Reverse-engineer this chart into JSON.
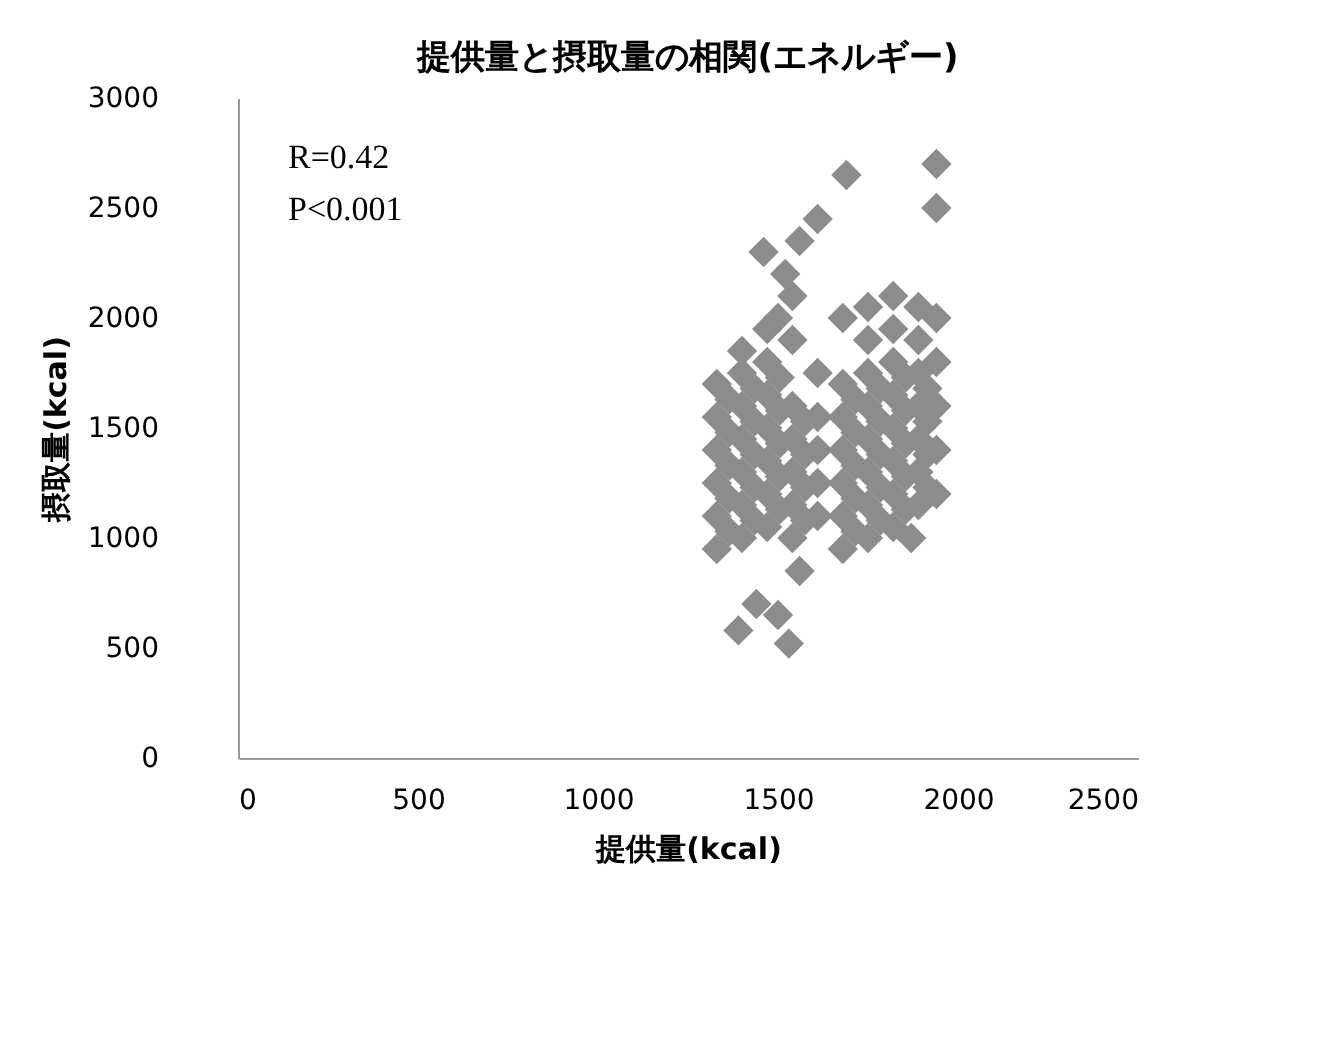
{
  "chart_data": {
    "type": "scatter",
    "title": "提供量と摂取量の相関(エネルギー)",
    "xlabel": "提供量(kcal)",
    "ylabel": "摂取量(kcal)",
    "annotations": [
      "R=0.42",
      "P<0.001"
    ],
    "x": [
      1330,
      1330,
      1330,
      1330,
      1330,
      1330,
      1400,
      1400,
      1400,
      1400,
      1400,
      1400,
      1400,
      1470,
      1470,
      1470,
      1470,
      1470,
      1470,
      1470,
      1540,
      1540,
      1540,
      1540,
      1540,
      1540,
      1540,
      1610,
      1610,
      1610,
      1610,
      1610,
      1680,
      1680,
      1680,
      1680,
      1680,
      1680,
      1680,
      1750,
      1750,
      1750,
      1750,
      1750,
      1750,
      1750,
      1750,
      1820,
      1820,
      1820,
      1820,
      1820,
      1820,
      1820,
      1820,
      1890,
      1890,
      1890,
      1890,
      1890,
      1890,
      1890,
      1940,
      1940,
      1940,
      1940,
      1940,
      1940,
      1940,
      1390,
      1530,
      1500,
      1560,
      1440,
      1460,
      1520,
      1560,
      1610,
      1690,
      1870,
      1500,
      1365,
      1365,
      1365,
      1365,
      1365,
      1435,
      1435,
      1435,
      1435,
      1435,
      1505,
      1505,
      1505,
      1505,
      1505,
      1575,
      1575,
      1575,
      1575,
      1715,
      1715,
      1715,
      1715,
      1715,
      1785,
      1785,
      1785,
      1785,
      1785,
      1855,
      1855,
      1855,
      1855,
      1855,
      1915,
      1915,
      1915,
      1915
    ],
    "series": [
      {
        "color": "#8c8c8c",
        "values": [
          950,
          1100,
          1250,
          1400,
          1550,
          1700,
          1000,
          1150,
          1300,
          1450,
          1600,
          1750,
          1850,
          1050,
          1200,
          1350,
          1500,
          1650,
          1800,
          1950,
          1000,
          1150,
          1300,
          1450,
          1600,
          1900,
          2100,
          1100,
          1250,
          1400,
          1550,
          1750,
          950,
          1100,
          1250,
          1400,
          1550,
          1700,
          2000,
          1000,
          1150,
          1300,
          1450,
          1600,
          1750,
          1900,
          2050,
          1050,
          1200,
          1350,
          1500,
          1650,
          1800,
          1950,
          2100,
          1150,
          1300,
          1450,
          1600,
          1750,
          1900,
          2050,
          1200,
          1400,
          1600,
          1800,
          2000,
          2500,
          2700,
          580,
          520,
          650,
          850,
          700,
          2300,
          2200,
          2350,
          2450,
          2650,
          1000,
          2000,
          1030,
          1180,
          1330,
          1480,
          1630,
          1080,
          1230,
          1380,
          1530,
          1680,
          1130,
          1280,
          1430,
          1580,
          1730,
          1080,
          1230,
          1380,
          1530,
          1030,
          1180,
          1330,
          1480,
          1630,
          1080,
          1230,
          1380,
          1530,
          1680,
          1130,
          1280,
          1430,
          1580,
          1730,
          1230,
          1380,
          1530,
          1680
        ]
      }
    ],
    "xlim": [
      0,
      2500
    ],
    "xticks": [
      0,
      500,
      1000,
      1500,
      2000,
      2500
    ],
    "ylim": [
      0,
      3000
    ],
    "yticks": [
      0,
      500,
      1000,
      1500,
      2000,
      2500,
      3000
    ],
    "marker": "diamond",
    "grid": false
  }
}
